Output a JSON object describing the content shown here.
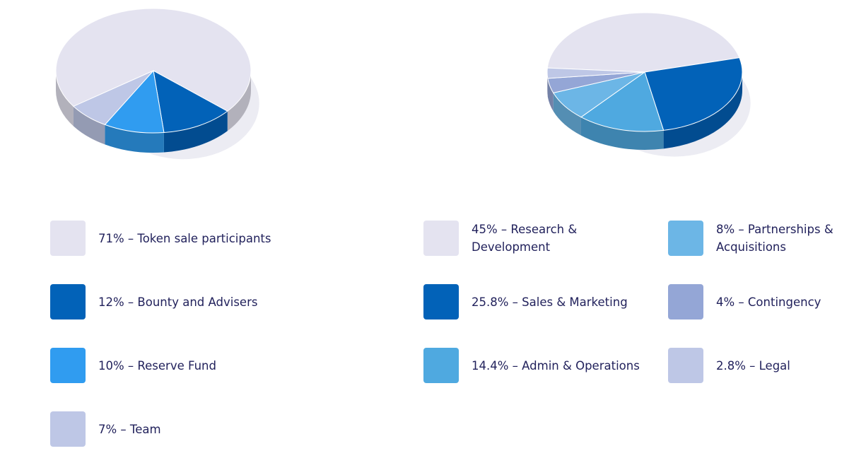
{
  "chart_data": [
    {
      "type": "pie",
      "slices": [
        {
          "label": "Token sale participants",
          "value": 71,
          "text": "71% – Token sale participants",
          "color": "#e4e3f0"
        },
        {
          "label": "Bounty and Advisers",
          "value": 12,
          "text": "12% – Bounty and Advisers",
          "color": "#0262b8"
        },
        {
          "label": "Reserve Fund",
          "value": 10,
          "text": "10% – Reserve Fund",
          "color": "#309cf0"
        },
        {
          "label": "Team",
          "value": 7,
          "text": "7% – Team",
          "color": "#bec7e6"
        }
      ]
    },
    {
      "type": "pie",
      "slices": [
        {
          "label": "Research & Development",
          "value": 45,
          "text": "45% – Research & Development",
          "color": "#e4e3f0"
        },
        {
          "label": "Sales & Marketing",
          "value": 25.8,
          "text": "25.8% – Sales & Marketing",
          "color": "#0262b8"
        },
        {
          "label": "Admin & Operations",
          "value": 14.4,
          "text": "14.4% – Admin & Operations",
          "color": "#4fa9e0"
        },
        {
          "label": "Partnerships & Acquisitions",
          "value": 8,
          "text": "8% – Partnerships & Acquisitions",
          "color": "#6cb6e6"
        },
        {
          "label": "Contingency",
          "value": 4,
          "text": "4% – Contingency",
          "color": "#94a6d6"
        },
        {
          "label": "Legal",
          "value": 2.8,
          "text": "2.8% – Legal",
          "color": "#bec7e6"
        }
      ]
    }
  ]
}
